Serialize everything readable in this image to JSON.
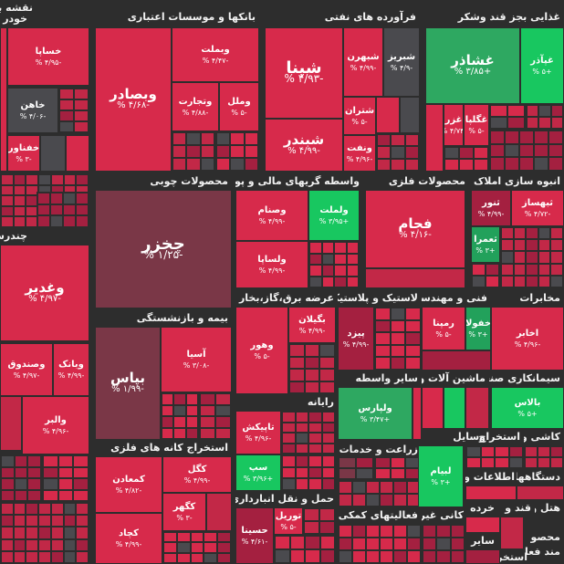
{
  "colors": {
    "background": "#2d2d2d",
    "neg_strong": "#d72a4b",
    "neg_mid": "#c22847",
    "neg_dark": "#a42040",
    "neg_muted": "#7a3747",
    "neutral": "#4a4a4e",
    "pos_light": "#2ea861",
    "pos_strong": "#18c760",
    "pos_mid": "#22a15b"
  },
  "headers": {
    "naghshe": "نقشه با",
    "khodro": "خودر",
    "banks": "بانکها و موسسات اعتباری",
    "oil": "فرآورده های نفتی",
    "food": "غذایی بجز قند وشکر",
    "wood": "محصولات چوبی",
    "finance": "واسطه گریهای مالی و پولی",
    "metal": "محصولات فلزی",
    "property": "انبوه سازی املاک و",
    "chandrshe": "چندرش",
    "insurance": "بیمه و بازنشستگی",
    "utility": "عرضه برق،گاز،بخار و آب",
    "plastic": "لاستیک و پلاستیک",
    "engineering": "فنی و مهندسی",
    "services": "مخابرات",
    "computer": "رایانه",
    "other_broker": "سایر واسطه",
    "machinery": "ماشین آلات و",
    "industrial": "سیمانکاری صنعتی",
    "mining": "استخراج کانه های فلزی",
    "retail": "زراعت و خدمات",
    "transport": "حمل و نقل انبارداری و",
    "support": "فعالیتهای کمکی به",
    "nonmetal": "کانی غیر",
    "extraction": "استخراج",
    "tools": "وسایل",
    "kashi": "کاشی و",
    "info": "اطلاعات و",
    "devices": "دستگاهها",
    "khorde": "خرده",
    "hotel": "هتل و",
    "ghand": "قند و",
    "other2": "سایر",
    "mahsool": "محصو",
    "ghaza": "مند فعا",
    "estekhraj2": "استخرا"
  },
  "tiles": {
    "khasapa": {
      "name": "خساپا",
      "pct": "-۴/۹۵ %"
    },
    "khaham": {
      "name": "خاهن",
      "pct": "-۴/۰۶ %"
    },
    "khafnavar": {
      "name": "خفناور",
      "pct": "-۳ %"
    },
    "vebsadar": {
      "name": "وبصادر",
      "pct": "-۴/۶۸ %"
    },
    "vebmelat": {
      "name": "وبملت",
      "pct": "-۴/۴۷ %"
    },
    "vetejarat": {
      "name": "وتجارت",
      "pct": "-۴/۸۸ %"
    },
    "vamelal": {
      "name": "وملل",
      "pct": "-۵ %"
    },
    "shepna": {
      "name": "شپنا",
      "pct": "-۴/۹۳ %"
    },
    "shebahran": {
      "name": "شبهرن",
      "pct": "-۴/۹۹ %"
    },
    "shabriz": {
      "name": "شبریز",
      "pct": "-۴/۹ %"
    },
    "shebandar": {
      "name": "شبندر",
      "pct": "-۴/۹۹ %"
    },
    "sheteran": {
      "name": "شتران",
      "pct": "-۵ %"
    },
    "vanaft": {
      "name": "ونفت",
      "pct": "-۴/۹۶ %"
    },
    "ghashazar": {
      "name": "غشاذر",
      "pct": "+۳/۸۵ %"
    },
    "ghapaza": {
      "name": "غپآذر",
      "pct": "+۵ %"
    },
    "gharaz": {
      "name": "غزر",
      "pct": "-۴/۷۴ %"
    },
    "ghegalpa": {
      "name": "غگلپا",
      "pct": "-۵ %"
    },
    "chokhzar": {
      "name": "چخزر",
      "pct": "-۱/۲۵ %"
    },
    "vasanam": {
      "name": "وصنام",
      "pct": "-۴/۹۹ %"
    },
    "valmelat": {
      "name": "ولملت",
      "pct": "+۳/۹۵ %"
    },
    "valsapa": {
      "name": "ولساپا",
      "pct": "-۴/۹۹ %"
    },
    "fojam": {
      "name": "فجام",
      "pct": "-۴/۱۶ %"
    },
    "sonor": {
      "name": "ثنور",
      "pct": "-۴/۹۹ %"
    },
    "sobahsaz": {
      "name": "ثبهساز",
      "pct": "-۴/۷۲ %"
    },
    "soemrat": {
      "name": "ثعمرا",
      "pct": "+۳ %"
    },
    "vaghadir": {
      "name": "وغدیر",
      "pct": "-۴/۹۷ %"
    },
    "vesandogh": {
      "name": "وصندوق",
      "pct": "-۴/۹۷ %"
    },
    "vabank": {
      "name": "وبانک",
      "pct": "-۴/۹۹ %"
    },
    "vaalbor": {
      "name": "والبر",
      "pct": "-۴/۹۶ %"
    },
    "bepas": {
      "name": "بپاس",
      "pct": "-۱/۹۹ %"
    },
    "asia": {
      "name": "آسیا",
      "pct": "-۳/۰۸ %"
    },
    "bagilan": {
      "name": "بگیلان",
      "pct": "-۴/۹۹ %"
    },
    "vahor": {
      "name": "وهور",
      "pct": "-۵ %"
    },
    "pizad": {
      "name": "پیزد",
      "pct": "-۴/۹۹ %"
    },
    "rempana": {
      "name": "رمپنا",
      "pct": "-۵ %"
    },
    "khefula": {
      "name": "خفولا",
      "pct": "+۳ %"
    },
    "akhabar": {
      "name": "اخابر",
      "pct": "-۴/۹۶ %"
    },
    "valparis": {
      "name": "ولپارس",
      "pct": "+۳/۴۷ %"
    },
    "balas": {
      "name": "بالاس",
      "pct": "+۵ %"
    },
    "tapikish": {
      "name": "تاپیکش",
      "pct": "-۴/۹۶ %"
    },
    "sep": {
      "name": "سپ",
      "pct": "+۳/۹۶ %"
    },
    "kegel": {
      "name": "کگل",
      "pct": "-۴/۹۹ %"
    },
    "kemoadan": {
      "name": "کمعادن",
      "pct": "-۴/۸۲ %"
    },
    "kegehar": {
      "name": "کگهر",
      "pct": "-۳ %"
    },
    "kechad": {
      "name": "کچاد",
      "pct": "-۴/۹۹ %"
    },
    "lebiam": {
      "name": "لبیام",
      "pct": "+۳ %"
    },
    "hasina": {
      "name": "حسینا",
      "pct": "-۴/۶۱ %"
    },
    "turil": {
      "name": "توریل",
      "pct": "-۵ %"
    }
  }
}
